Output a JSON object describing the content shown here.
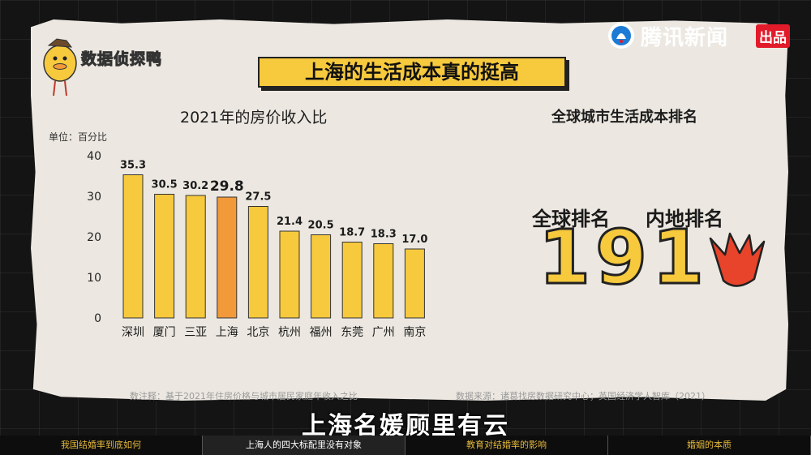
{
  "brand": {
    "name": "数据侦探鸭"
  },
  "source": {
    "name": "腾讯新闻",
    "badge": "出品"
  },
  "title": "上海的生活成本真的挺高",
  "chart_data": {
    "type": "bar",
    "title": "2021年的房价收入比",
    "ylabel": "单位：百分比",
    "ylim": [
      0,
      40
    ],
    "yticks": [
      0,
      10,
      20,
      30,
      40
    ],
    "categories": [
      "深圳",
      "厦门",
      "三亚",
      "上海",
      "北京",
      "杭州",
      "福州",
      "东莞",
      "广州",
      "南京"
    ],
    "values": [
      35.3,
      30.5,
      30.2,
      29.8,
      27.5,
      21.4,
      20.5,
      18.7,
      18.3,
      17.0
    ],
    "value_labels": [
      "35.3",
      "30.5",
      "30.2",
      "29.8",
      "27.5",
      "21.4",
      "20.5",
      "18.7",
      "18.3",
      "17.0"
    ],
    "highlight_category": "上海",
    "colors": {
      "bar": "#f7c93d",
      "highlight": "#f29a3a",
      "outline": "#333333"
    },
    "grid": false
  },
  "ranking": {
    "title": "全球城市生活成本排名",
    "global_label": "全球排名",
    "global_value": "19",
    "mainland_label": "内地排名",
    "mainland_value": "1"
  },
  "footnotes": {
    "note": "数注释：基于2021年住房价格与城市居民家庭年收入之比",
    "source": "数据来源：诸葛找房数据研究中心；英国经济学人智库（2021）"
  },
  "subtitle": "上海名媛顾里有云",
  "nav": {
    "items": [
      {
        "label": "我国结婚率到底如何",
        "active": false
      },
      {
        "label": "上海人的四大标配里没有对象",
        "active": true
      },
      {
        "label": "教育对结婚率的影响",
        "active": false
      },
      {
        "label": "婚姻的本质",
        "active": false
      }
    ]
  }
}
